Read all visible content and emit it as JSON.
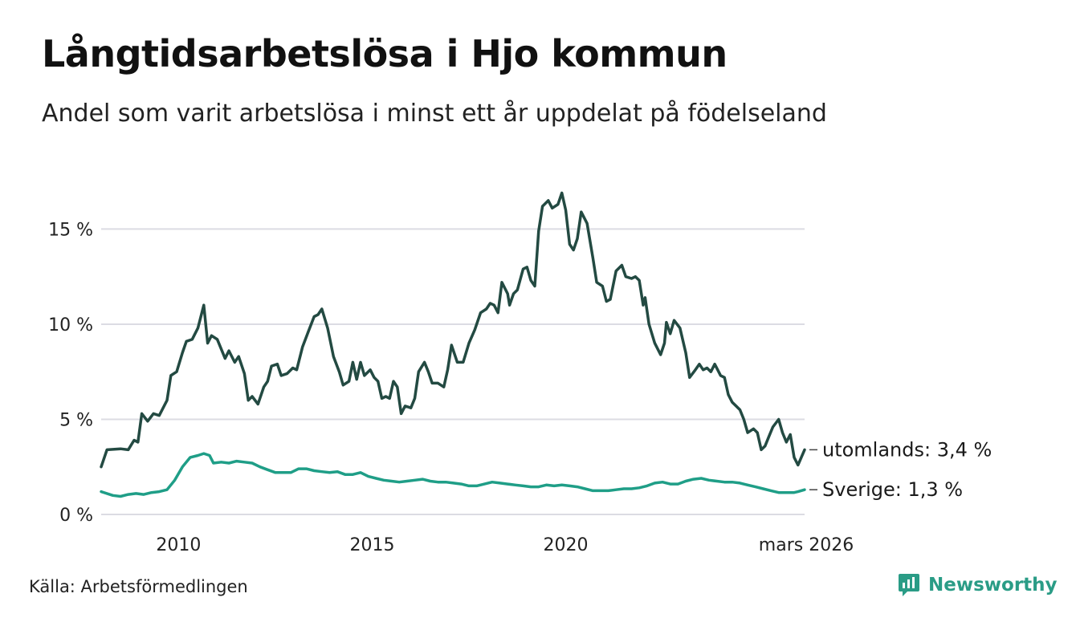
{
  "header": {
    "title": "Långtidsarbetslösa i Hjo kommun",
    "subtitle": "Andel som varit arbetslösa i minst ett år uppdelat på födelseland"
  },
  "footer": {
    "source": "Källa: Arbetsförmedlingen",
    "brand": "Newsworthy"
  },
  "chart_data": {
    "type": "line",
    "x_start": 2008.0,
    "x_end": 2026.17,
    "ylim": [
      0,
      17
    ],
    "yticks": [
      {
        "value": 0,
        "label": "0 %"
      },
      {
        "value": 5,
        "label": "5 %"
      },
      {
        "value": 10,
        "label": "10 %"
      },
      {
        "value": 15,
        "label": "15 %"
      }
    ],
    "xticks": [
      {
        "value": 2010,
        "label": "2010"
      },
      {
        "value": 2015,
        "label": "2015"
      },
      {
        "value": 2020,
        "label": "2020"
      },
      {
        "value": 2026.17,
        "label": "mars 2026"
      }
    ],
    "grid": true,
    "series": [
      {
        "name": "utomlands",
        "label": "utomlands: 3,4 %",
        "color": "#234a42",
        "values": [
          [
            2008.0,
            2.5
          ],
          [
            2008.15,
            3.4
          ],
          [
            2008.5,
            3.45
          ],
          [
            2008.7,
            3.4
          ],
          [
            2008.85,
            3.9
          ],
          [
            2008.95,
            3.8
          ],
          [
            2009.05,
            5.3
          ],
          [
            2009.2,
            4.9
          ],
          [
            2009.35,
            5.3
          ],
          [
            2009.5,
            5.2
          ],
          [
            2009.7,
            6.0
          ],
          [
            2009.8,
            7.3
          ],
          [
            2009.95,
            7.5
          ],
          [
            2010.1,
            8.5
          ],
          [
            2010.2,
            9.1
          ],
          [
            2010.35,
            9.2
          ],
          [
            2010.5,
            9.8
          ],
          [
            2010.65,
            11.0
          ],
          [
            2010.75,
            9.0
          ],
          [
            2010.85,
            9.4
          ],
          [
            2011.0,
            9.2
          ],
          [
            2011.2,
            8.2
          ],
          [
            2011.3,
            8.6
          ],
          [
            2011.45,
            8.0
          ],
          [
            2011.55,
            8.3
          ],
          [
            2011.7,
            7.4
          ],
          [
            2011.8,
            6.0
          ],
          [
            2011.9,
            6.2
          ],
          [
            2012.05,
            5.8
          ],
          [
            2012.2,
            6.7
          ],
          [
            2012.3,
            7.0
          ],
          [
            2012.4,
            7.8
          ],
          [
            2012.55,
            7.9
          ],
          [
            2012.65,
            7.3
          ],
          [
            2012.8,
            7.4
          ],
          [
            2012.95,
            7.7
          ],
          [
            2013.05,
            7.6
          ],
          [
            2013.2,
            8.8
          ],
          [
            2013.35,
            9.6
          ],
          [
            2013.5,
            10.4
          ],
          [
            2013.6,
            10.5
          ],
          [
            2013.7,
            10.8
          ],
          [
            2013.85,
            9.8
          ],
          [
            2014.0,
            8.3
          ],
          [
            2014.15,
            7.5
          ],
          [
            2014.25,
            6.8
          ],
          [
            2014.4,
            7.0
          ],
          [
            2014.5,
            8.0
          ],
          [
            2014.6,
            7.1
          ],
          [
            2014.7,
            8.0
          ],
          [
            2014.8,
            7.3
          ],
          [
            2014.95,
            7.6
          ],
          [
            2015.05,
            7.2
          ],
          [
            2015.15,
            7.0
          ],
          [
            2015.25,
            6.1
          ],
          [
            2015.35,
            6.2
          ],
          [
            2015.45,
            6.1
          ],
          [
            2015.55,
            7.0
          ],
          [
            2015.65,
            6.7
          ],
          [
            2015.75,
            5.3
          ],
          [
            2015.85,
            5.7
          ],
          [
            2016.0,
            5.6
          ],
          [
            2016.1,
            6.1
          ],
          [
            2016.2,
            7.5
          ],
          [
            2016.35,
            8.0
          ],
          [
            2016.45,
            7.5
          ],
          [
            2016.55,
            6.9
          ],
          [
            2016.7,
            6.9
          ],
          [
            2016.85,
            6.7
          ],
          [
            2016.95,
            7.6
          ],
          [
            2017.05,
            8.9
          ],
          [
            2017.2,
            8.0
          ],
          [
            2017.35,
            8.0
          ],
          [
            2017.5,
            9.0
          ],
          [
            2017.65,
            9.7
          ],
          [
            2017.8,
            10.6
          ],
          [
            2017.95,
            10.8
          ],
          [
            2018.05,
            11.1
          ],
          [
            2018.15,
            11.0
          ],
          [
            2018.25,
            10.6
          ],
          [
            2018.35,
            12.2
          ],
          [
            2018.5,
            11.6
          ],
          [
            2018.55,
            11.0
          ],
          [
            2018.65,
            11.6
          ],
          [
            2018.75,
            11.8
          ],
          [
            2018.9,
            12.9
          ],
          [
            2019.0,
            13.0
          ],
          [
            2019.1,
            12.3
          ],
          [
            2019.2,
            12.0
          ],
          [
            2019.3,
            14.9
          ],
          [
            2019.4,
            16.2
          ],
          [
            2019.55,
            16.5
          ],
          [
            2019.65,
            16.1
          ],
          [
            2019.8,
            16.3
          ],
          [
            2019.9,
            16.9
          ],
          [
            2020.0,
            16.0
          ],
          [
            2020.1,
            14.2
          ],
          [
            2020.2,
            13.9
          ],
          [
            2020.3,
            14.5
          ],
          [
            2020.4,
            15.9
          ],
          [
            2020.55,
            15.3
          ],
          [
            2020.7,
            13.5
          ],
          [
            2020.8,
            12.2
          ],
          [
            2020.95,
            12.0
          ],
          [
            2021.05,
            11.2
          ],
          [
            2021.15,
            11.3
          ],
          [
            2021.3,
            12.8
          ],
          [
            2021.45,
            13.1
          ],
          [
            2021.55,
            12.5
          ],
          [
            2021.7,
            12.4
          ],
          [
            2021.8,
            12.5
          ],
          [
            2021.9,
            12.3
          ],
          [
            2022.0,
            11.0
          ],
          [
            2022.05,
            11.4
          ],
          [
            2022.15,
            10.0
          ],
          [
            2022.3,
            9.0
          ],
          [
            2022.45,
            8.4
          ],
          [
            2022.55,
            9.0
          ],
          [
            2022.6,
            10.1
          ],
          [
            2022.7,
            9.5
          ],
          [
            2022.8,
            10.2
          ],
          [
            2022.95,
            9.8
          ],
          [
            2023.1,
            8.5
          ],
          [
            2023.2,
            7.2
          ],
          [
            2023.35,
            7.6
          ],
          [
            2023.45,
            7.9
          ],
          [
            2023.55,
            7.6
          ],
          [
            2023.65,
            7.7
          ],
          [
            2023.75,
            7.5
          ],
          [
            2023.85,
            7.9
          ],
          [
            2024.0,
            7.3
          ],
          [
            2024.1,
            7.2
          ],
          [
            2024.2,
            6.3
          ],
          [
            2024.3,
            5.9
          ],
          [
            2024.4,
            5.7
          ],
          [
            2024.5,
            5.5
          ],
          [
            2024.6,
            5.0
          ],
          [
            2024.7,
            4.3
          ],
          [
            2024.85,
            4.5
          ],
          [
            2024.95,
            4.3
          ],
          [
            2025.05,
            3.4
          ],
          [
            2025.15,
            3.6
          ],
          [
            2025.25,
            4.1
          ],
          [
            2025.35,
            4.6
          ],
          [
            2025.5,
            5.0
          ],
          [
            2025.6,
            4.3
          ],
          [
            2025.7,
            3.8
          ],
          [
            2025.8,
            4.2
          ],
          [
            2025.9,
            3.0
          ],
          [
            2026.0,
            2.6
          ],
          [
            2026.17,
            3.4
          ]
        ]
      },
      {
        "name": "Sverige",
        "label": "Sverige: 1,3 %",
        "color": "#1f9e87",
        "values": [
          [
            2008.0,
            1.2
          ],
          [
            2008.3,
            1.0
          ],
          [
            2008.5,
            0.95
          ],
          [
            2008.7,
            1.05
          ],
          [
            2008.9,
            1.1
          ],
          [
            2009.1,
            1.05
          ],
          [
            2009.3,
            1.15
          ],
          [
            2009.5,
            1.2
          ],
          [
            2009.7,
            1.3
          ],
          [
            2009.9,
            1.8
          ],
          [
            2010.1,
            2.5
          ],
          [
            2010.3,
            3.0
          ],
          [
            2010.5,
            3.1
          ],
          [
            2010.65,
            3.2
          ],
          [
            2010.8,
            3.1
          ],
          [
            2010.9,
            2.7
          ],
          [
            2011.1,
            2.75
          ],
          [
            2011.3,
            2.7
          ],
          [
            2011.5,
            2.8
          ],
          [
            2011.7,
            2.75
          ],
          [
            2011.9,
            2.7
          ],
          [
            2012.1,
            2.5
          ],
          [
            2012.3,
            2.35
          ],
          [
            2012.5,
            2.2
          ],
          [
            2012.7,
            2.2
          ],
          [
            2012.9,
            2.2
          ],
          [
            2013.1,
            2.4
          ],
          [
            2013.3,
            2.4
          ],
          [
            2013.5,
            2.3
          ],
          [
            2013.7,
            2.25
          ],
          [
            2013.9,
            2.2
          ],
          [
            2014.1,
            2.25
          ],
          [
            2014.3,
            2.1
          ],
          [
            2014.5,
            2.1
          ],
          [
            2014.7,
            2.2
          ],
          [
            2014.9,
            2.0
          ],
          [
            2015.1,
            1.9
          ],
          [
            2015.3,
            1.8
          ],
          [
            2015.5,
            1.75
          ],
          [
            2015.7,
            1.7
          ],
          [
            2015.9,
            1.75
          ],
          [
            2016.1,
            1.8
          ],
          [
            2016.3,
            1.85
          ],
          [
            2016.5,
            1.75
          ],
          [
            2016.7,
            1.7
          ],
          [
            2016.9,
            1.7
          ],
          [
            2017.1,
            1.65
          ],
          [
            2017.3,
            1.6
          ],
          [
            2017.5,
            1.5
          ],
          [
            2017.7,
            1.5
          ],
          [
            2017.9,
            1.6
          ],
          [
            2018.1,
            1.7
          ],
          [
            2018.3,
            1.65
          ],
          [
            2018.5,
            1.6
          ],
          [
            2018.7,
            1.55
          ],
          [
            2018.9,
            1.5
          ],
          [
            2019.1,
            1.45
          ],
          [
            2019.3,
            1.45
          ],
          [
            2019.5,
            1.55
          ],
          [
            2019.7,
            1.5
          ],
          [
            2019.9,
            1.55
          ],
          [
            2020.1,
            1.5
          ],
          [
            2020.3,
            1.45
          ],
          [
            2020.5,
            1.35
          ],
          [
            2020.7,
            1.25
          ],
          [
            2020.9,
            1.25
          ],
          [
            2021.1,
            1.25
          ],
          [
            2021.3,
            1.3
          ],
          [
            2021.5,
            1.35
          ],
          [
            2021.7,
            1.35
          ],
          [
            2021.9,
            1.4
          ],
          [
            2022.1,
            1.5
          ],
          [
            2022.3,
            1.65
          ],
          [
            2022.5,
            1.7
          ],
          [
            2022.7,
            1.6
          ],
          [
            2022.9,
            1.6
          ],
          [
            2023.1,
            1.75
          ],
          [
            2023.3,
            1.85
          ],
          [
            2023.5,
            1.9
          ],
          [
            2023.7,
            1.8
          ],
          [
            2023.9,
            1.75
          ],
          [
            2024.1,
            1.7
          ],
          [
            2024.3,
            1.7
          ],
          [
            2024.5,
            1.65
          ],
          [
            2024.7,
            1.55
          ],
          [
            2024.9,
            1.45
          ],
          [
            2025.1,
            1.35
          ],
          [
            2025.3,
            1.25
          ],
          [
            2025.5,
            1.15
          ],
          [
            2025.7,
            1.15
          ],
          [
            2025.9,
            1.15
          ],
          [
            2026.0,
            1.2
          ],
          [
            2026.17,
            1.3
          ]
        ]
      }
    ]
  }
}
